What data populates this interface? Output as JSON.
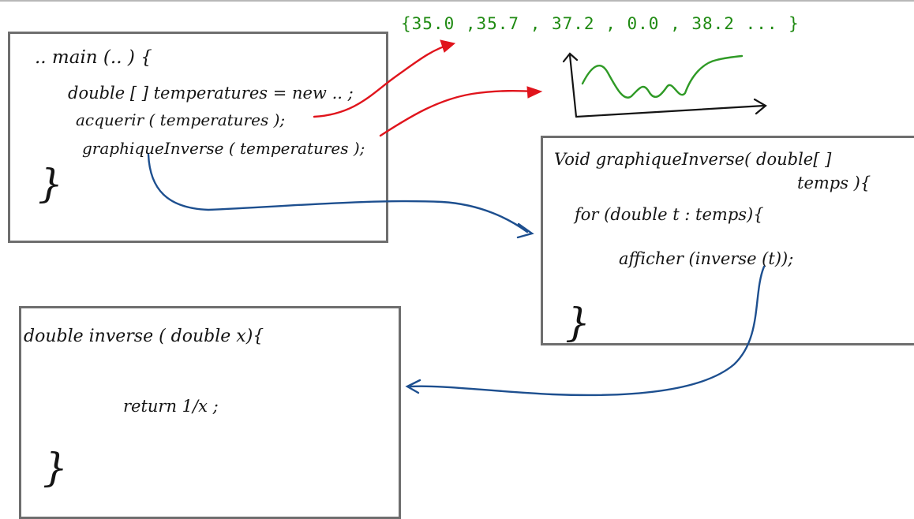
{
  "main_box": {
    "line1": ".. main (.. ) {",
    "line2": "double [ ] temperatures = new .. ;",
    "line3": "acquerir ( temperatures );",
    "line4": "graphiqueInverse ( temperatures );",
    "close_brace": "}"
  },
  "values_annotation": {
    "text": "{35.0 ,35.7 , 37.2 , 0.0 , 38.2 ... }"
  },
  "graph_box": {
    "line1": "Void graphiqueInverse( double[ ]",
    "line2": "temps ){",
    "line3": "for (double t : temps){",
    "line4": "afficher (inverse (t));",
    "close_brace": "}"
  },
  "inverse_box": {
    "line1": "double inverse ( double x){",
    "line2": "return 1/x ;",
    "close_brace": "}"
  },
  "colors": {
    "ink": "#141414",
    "values": "#1f8a12",
    "plot": "#2f9a26",
    "red_arrow": "#e0141c",
    "blue_arrow": "#1d4f8f",
    "box_border": "#6e6e6e"
  }
}
